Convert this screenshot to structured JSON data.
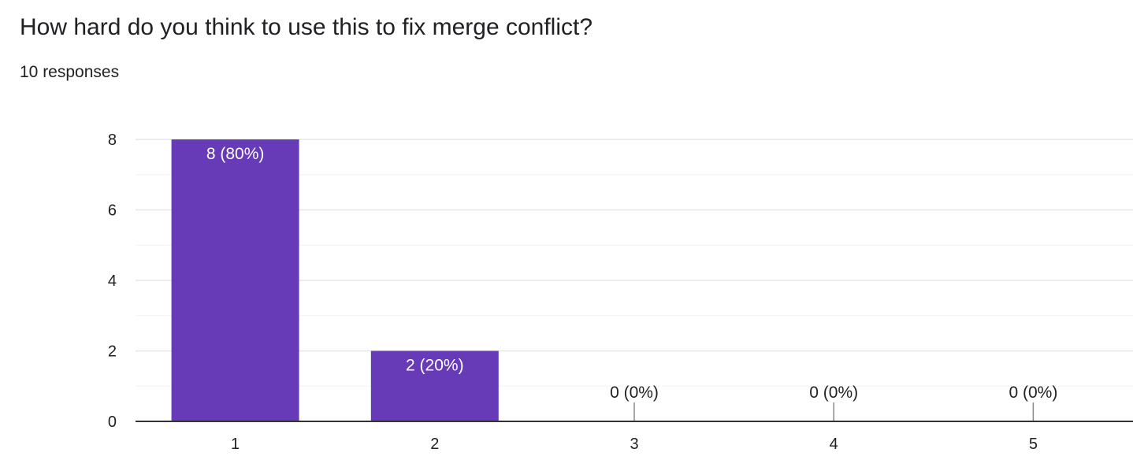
{
  "header": {
    "title": "How hard do you think to use this to fix merge conflict?",
    "responses": "10 responses"
  },
  "colors": {
    "bar": "#673ab7",
    "grid": "#e6e6e6",
    "minor_grid": "#f3f3f3",
    "axis": "#333333",
    "text": "#202124",
    "label_inside": "#ffffff"
  },
  "chart_data": {
    "type": "bar",
    "categories": [
      "1",
      "2",
      "3",
      "4",
      "5"
    ],
    "values": [
      8,
      2,
      0,
      0,
      0
    ],
    "data_labels": [
      "8 (80%)",
      "2 (20%)",
      "0 (0%)",
      "0 (0%)",
      "0 (0%)"
    ],
    "title": "How hard do you think to use this to fix merge conflict?",
    "xlabel": "",
    "ylabel": "",
    "ylim": [
      0,
      8
    ],
    "yticks": [
      0,
      2,
      4,
      6,
      8
    ],
    "grid": true,
    "legend": "none"
  }
}
